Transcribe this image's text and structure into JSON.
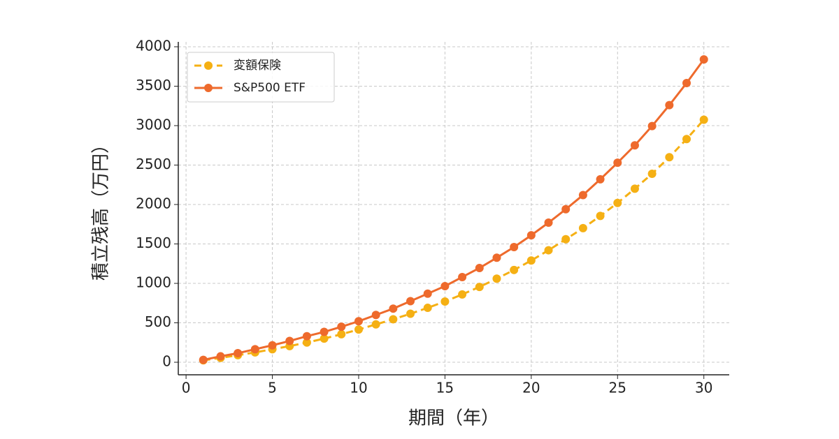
{
  "chart_data": {
    "type": "line",
    "x_label": "期間（年）",
    "y_label": "積立残高（万円）",
    "x": [
      1,
      2,
      3,
      4,
      5,
      6,
      7,
      8,
      9,
      10,
      11,
      12,
      13,
      14,
      15,
      16,
      17,
      18,
      19,
      20,
      21,
      22,
      23,
      24,
      25,
      26,
      27,
      28,
      29,
      30
    ],
    "series": [
      {
        "name": "変額保険",
        "color": "#f5b014",
        "dashed": true,
        "values": [
          25,
          55,
          90,
          125,
          165,
          205,
          250,
          300,
          355,
          415,
          480,
          545,
          615,
          690,
          770,
          860,
          955,
          1060,
          1170,
          1290,
          1420,
          1560,
          1700,
          1855,
          2020,
          2200,
          2390,
          2600,
          2830,
          3075
        ]
      },
      {
        "name": "S&P500 ETF",
        "color": "#ee6a2c",
        "dashed": false,
        "values": [
          30,
          75,
          115,
          165,
          215,
          270,
          330,
          385,
          450,
          520,
          600,
          680,
          775,
          870,
          965,
          1080,
          1195,
          1325,
          1460,
          1610,
          1770,
          1940,
          2120,
          2320,
          2530,
          2750,
          2995,
          3260,
          3540,
          3840
        ]
      }
    ],
    "xlim": [
      -0.45,
      31.47
    ],
    "xticks": [
      0,
      5,
      10,
      15,
      20,
      25,
      30
    ],
    "ylim": [
      -159,
      4062
    ],
    "yticks": [
      0,
      500,
      1000,
      1500,
      2000,
      2500,
      3000,
      3500,
      4000
    ],
    "grid": true,
    "legend": "upper-left"
  }
}
